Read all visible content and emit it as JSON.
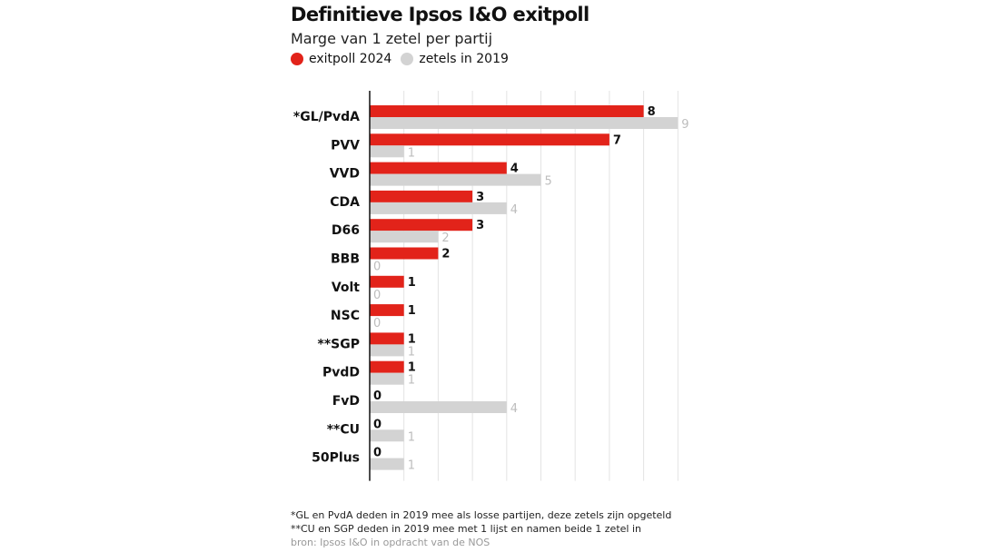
{
  "chart_data": {
    "type": "bar",
    "orientation": "horizontal",
    "title": "Definitieve Ipsos I&O exitpoll",
    "subtitle": "Marge van 1 zetel per partij",
    "categories": [
      "*GL/PvdA",
      "PVV",
      "VVD",
      "CDA",
      "D66",
      "BBB",
      "Volt",
      "NSC",
      "**SGP",
      "PvdD",
      "FvD",
      "**CU",
      "50Plus"
    ],
    "series": [
      {
        "name": "exitpoll 2024",
        "color": "#e2231a",
        "values": [
          8,
          7,
          4,
          3,
          3,
          2,
          1,
          1,
          1,
          1,
          0,
          0,
          0
        ]
      },
      {
        "name": "zetels in 2019",
        "color": "#d3d3d3",
        "values": [
          9,
          1,
          5,
          4,
          2,
          0,
          0,
          0,
          1,
          1,
          4,
          1,
          1
        ]
      }
    ],
    "xlim": [
      0,
      9
    ],
    "grid": true,
    "legend_position": "top-left"
  },
  "footnotes": {
    "note1": "*GL en PvdA deden in 2019 mee als losse partijen, deze zetels zijn opgeteld",
    "note2": "**CU en SGP deden in 2019 mee met 1 lijst en namen beide 1 zetel in",
    "source": "bron: Ipsos I&O in opdracht van de NOS"
  }
}
